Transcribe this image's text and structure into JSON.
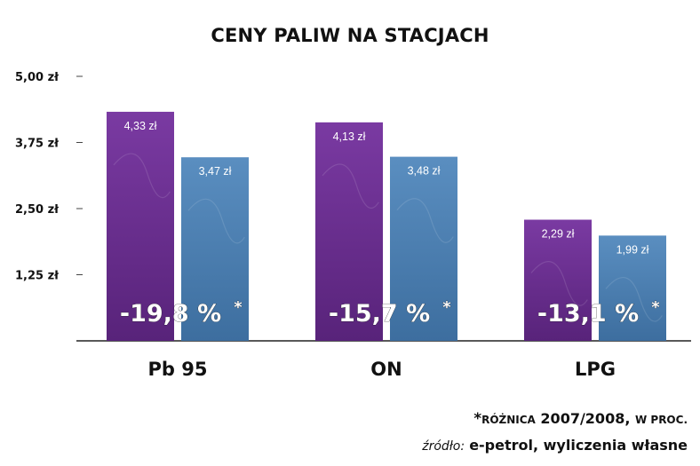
{
  "chart_data": {
    "type": "bar",
    "title": "CENY PALIW NA STACJACH",
    "categories": [
      "Pb 95",
      "ON",
      "LPG"
    ],
    "series": [
      {
        "values": [
          4.33,
          4.13,
          2.29
        ],
        "labels": [
          "4,33 zł",
          "4,13 zł",
          "2,29 zł"
        ],
        "color": "#6a3090"
      },
      {
        "values": [
          3.47,
          3.48,
          1.99
        ],
        "labels": [
          "3,47 zł",
          "3,48 zł",
          "1,99 zł"
        ],
        "color": "#4a7fb0"
      }
    ],
    "differences": [
      "-19,8 %",
      "-15,7 %",
      "-13,1 %"
    ],
    "difference_marker": "*",
    "yticks": [
      {
        "value": 1.25,
        "label": "1,25 zł"
      },
      {
        "value": 2.5,
        "label": "2,50 zł"
      },
      {
        "value": 3.75,
        "label": "3,75 zł"
      },
      {
        "value": 5.0,
        "label": "5,00 zł"
      }
    ],
    "ylim": [
      0,
      5
    ],
    "grid": false
  },
  "footnote": {
    "star": "*",
    "text_small_1": "RÓŻNICA",
    "years": "2007/2008,",
    "text_small_2": "W PROC."
  },
  "source": {
    "label": "źródło:",
    "value": "e-petrol, wyliczenia własne"
  }
}
